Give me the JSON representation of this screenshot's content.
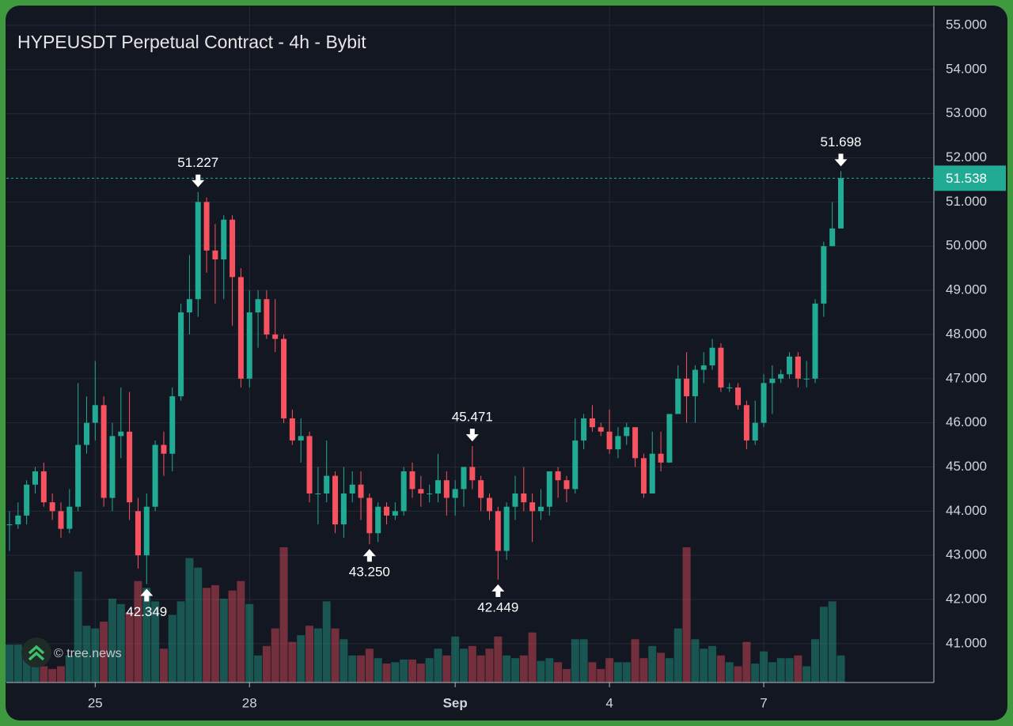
{
  "chart_data": {
    "type": "candlestick",
    "title": "HYPEUSDT Perpetual Contract - 4h - Bybit",
    "watermark": "© tree.news",
    "categories": [
      null,
      null,
      null,
      null,
      null,
      null,
      null,
      null,
      null,
      null,
      "25",
      null,
      null,
      null,
      null,
      null,
      null,
      null,
      null,
      null,
      null,
      null,
      null,
      null,
      null,
      null,
      null,
      null,
      "28",
      null,
      null,
      null,
      null,
      null,
      null,
      null,
      null,
      null,
      null,
      null,
      null,
      null,
      null,
      null,
      null,
      null,
      null,
      null,
      null,
      null,
      null,
      null,
      "Sep",
      null,
      null,
      null,
      null,
      null,
      null,
      null,
      null,
      null,
      null,
      null,
      null,
      null,
      null,
      null,
      null,
      null,
      "4",
      null,
      null,
      null,
      null,
      null,
      null,
      null,
      null,
      null,
      null,
      null,
      null,
      null,
      null,
      null,
      null,
      null,
      "7",
      null,
      null,
      null,
      null,
      null,
      null,
      null,
      null,
      null
    ],
    "open": [
      43.7,
      43.7,
      43.9,
      44.6,
      44.9,
      44.2,
      44.0,
      43.6,
      44.1,
      45.5,
      46.0,
      46.4,
      44.3,
      45.7,
      45.8,
      44.0,
      43.0,
      44.1,
      45.5,
      45.3,
      46.6,
      48.5,
      48.8,
      51.0,
      49.9,
      49.7,
      50.6,
      49.3,
      47.0,
      48.5,
      48.8,
      48.0,
      47.9,
      46.1,
      45.6,
      45.7,
      44.4,
      44.4,
      44.8,
      43.7,
      44.4,
      44.6,
      44.3,
      43.5,
      44.1,
      43.9,
      44.0,
      44.9,
      44.5,
      44.4,
      44.4,
      44.7,
      44.3,
      44.5,
      45.0,
      44.7,
      44.3,
      44.0,
      43.1,
      44.1,
      44.4,
      44.2,
      44.0,
      44.1,
      44.9,
      44.7,
      44.5,
      45.6,
      46.1,
      45.9,
      45.8,
      45.4,
      45.7,
      45.9,
      45.2,
      44.4,
      45.3,
      45.1,
      46.2,
      47.0,
      46.6,
      47.2,
      47.3,
      47.7,
      46.8,
      46.8,
      46.4,
      45.6,
      46.0,
      46.9,
      47.0,
      47.1,
      47.5,
      47.0,
      47.0,
      48.7,
      50.0,
      50.4
    ],
    "high": [
      44.0,
      44.2,
      44.7,
      45.0,
      45.1,
      44.4,
      44.2,
      44.5,
      46.9,
      46.6,
      47.4,
      46.6,
      46.0,
      46.8,
      46.7,
      44.3,
      44.4,
      45.6,
      45.8,
      46.8,
      48.7,
      49.8,
      51.227,
      51.1,
      50.5,
      50.7,
      50.7,
      49.5,
      49.0,
      49.0,
      49.0,
      48.8,
      48.0,
      46.3,
      46.1,
      45.8,
      45.0,
      45.6,
      44.9,
      45.0,
      44.9,
      44.9,
      44.4,
      44.2,
      44.2,
      44.2,
      45.0,
      45.1,
      44.8,
      44.6,
      45.3,
      44.9,
      44.7,
      45.0,
      45.471,
      44.8,
      44.4,
      44.1,
      44.2,
      44.8,
      45.0,
      44.4,
      44.5,
      44.9,
      45.0,
      44.8,
      46.1,
      46.2,
      46.4,
      46.0,
      46.3,
      45.9,
      46.0,
      45.9,
      45.3,
      45.8,
      45.8,
      46.2,
      47.3,
      47.6,
      47.3,
      47.6,
      47.9,
      47.8,
      46.9,
      46.9,
      46.5,
      46.5,
      47.1,
      47.3,
      47.2,
      47.6,
      47.6,
      47.4,
      48.8,
      50.1,
      51.0,
      51.698
    ],
    "low": [
      43.1,
      43.6,
      43.7,
      44.4,
      44.1,
      43.8,
      43.4,
      43.5,
      44.0,
      45.3,
      45.6,
      44.1,
      44.0,
      45.2,
      43.8,
      42.7,
      42.349,
      44.0,
      44.8,
      44.9,
      46.5,
      48.0,
      48.4,
      49.4,
      48.7,
      48.8,
      48.2,
      46.8,
      46.8,
      47.7,
      47.9,
      47.6,
      46.0,
      45.5,
      45.1,
      44.2,
      43.7,
      44.2,
      43.5,
      43.4,
      44.2,
      43.8,
      43.25,
      43.3,
      43.7,
      43.8,
      43.9,
      44.3,
      44.1,
      44.2,
      44.2,
      43.9,
      43.9,
      44.1,
      44.5,
      44.0,
      43.8,
      42.449,
      42.9,
      43.8,
      44.0,
      43.3,
      43.8,
      43.9,
      44.3,
      44.2,
      44.4,
      45.4,
      45.8,
      45.7,
      45.3,
      45.2,
      45.5,
      45.0,
      44.3,
      44.4,
      44.9,
      45.1,
      46.2,
      46.0,
      46.0,
      46.9,
      47.2,
      46.7,
      46.7,
      46.3,
      45.4,
      45.5,
      45.9,
      46.2,
      46.9,
      47.0,
      46.8,
      46.8,
      46.9,
      48.4,
      50.0,
      50.4
    ],
    "close": [
      43.7,
      43.9,
      44.6,
      44.9,
      44.2,
      44.0,
      43.6,
      44.1,
      45.5,
      46.0,
      46.4,
      44.3,
      45.7,
      45.8,
      44.2,
      43.0,
      44.1,
      45.5,
      45.3,
      46.6,
      48.5,
      48.8,
      51.0,
      49.9,
      49.7,
      50.6,
      49.3,
      47.0,
      48.5,
      48.8,
      48.0,
      47.9,
      46.1,
      45.6,
      45.7,
      44.4,
      44.4,
      44.8,
      43.7,
      44.4,
      44.6,
      44.3,
      43.5,
      44.1,
      43.9,
      44.0,
      44.9,
      44.5,
      44.4,
      44.4,
      44.7,
      44.3,
      44.5,
      45.0,
      44.7,
      44.3,
      44.0,
      43.1,
      44.1,
      44.4,
      44.2,
      44.0,
      44.1,
      44.9,
      44.7,
      44.5,
      45.6,
      46.1,
      45.9,
      45.8,
      45.4,
      45.7,
      45.9,
      45.2,
      44.4,
      45.3,
      45.1,
      46.2,
      47.0,
      46.6,
      47.2,
      47.3,
      47.7,
      46.8,
      46.8,
      46.4,
      45.6,
      46.0,
      46.9,
      47.0,
      47.1,
      47.5,
      47.0,
      47.0,
      48.7,
      50.0,
      50.4,
      51.538
    ],
    "volume": [
      28,
      28,
      20,
      15,
      12,
      10,
      12,
      20,
      82,
      42,
      40,
      45,
      62,
      58,
      52,
      75,
      70,
      60,
      25,
      50,
      60,
      92,
      85,
      70,
      72,
      62,
      68,
      75,
      58,
      20,
      27,
      40,
      100,
      30,
      35,
      42,
      40,
      60,
      40,
      32,
      20,
      20,
      25,
      18,
      14,
      15,
      17,
      17,
      14,
      18,
      25,
      20,
      34,
      25,
      27,
      20,
      25,
      34,
      20,
      18,
      20,
      37,
      16,
      18,
      15,
      10,
      32,
      32,
      15,
      10,
      18,
      15,
      15,
      32,
      18,
      27,
      22,
      18,
      40,
      100,
      32,
      25,
      27,
      20,
      15,
      12,
      30,
      14,
      23,
      15,
      18,
      18,
      20,
      12,
      32,
      56,
      60,
      20
    ],
    "up_color": "#22ab94",
    "down_color": "#f7525f",
    "ylim": [
      40.12,
      55.43
    ],
    "yticks": [
      {
        "value": 55,
        "label": "55.000"
      },
      {
        "value": 54,
        "label": "54.000"
      },
      {
        "value": 53,
        "label": "53.000"
      },
      {
        "value": 52,
        "label": "52.000"
      },
      {
        "value": 51,
        "label": "51.000"
      },
      {
        "value": 50,
        "label": "50.000"
      },
      {
        "value": 49,
        "label": "49.000"
      },
      {
        "value": 48,
        "label": "48.000"
      },
      {
        "value": 47,
        "label": "47.000"
      },
      {
        "value": 46,
        "label": "46.000"
      },
      {
        "value": 45,
        "label": "45.000"
      },
      {
        "value": 44,
        "label": "44.000"
      },
      {
        "value": 43,
        "label": "43.000"
      },
      {
        "value": 42,
        "label": "42.000"
      },
      {
        "value": 41,
        "label": "41.000"
      }
    ],
    "last_price": {
      "value": 51.538,
      "label": "51.538"
    },
    "annotations": [
      {
        "value": 51.227,
        "label": "51.227"
      },
      {
        "value": 42.349,
        "label": "42.349"
      },
      {
        "value": 43.25,
        "label": "43.250"
      },
      {
        "value": 45.471,
        "label": "45.471"
      },
      {
        "value": 42.449,
        "label": "42.449"
      },
      {
        "value": 51.698,
        "label": "51.698"
      }
    ],
    "grid": true
  }
}
